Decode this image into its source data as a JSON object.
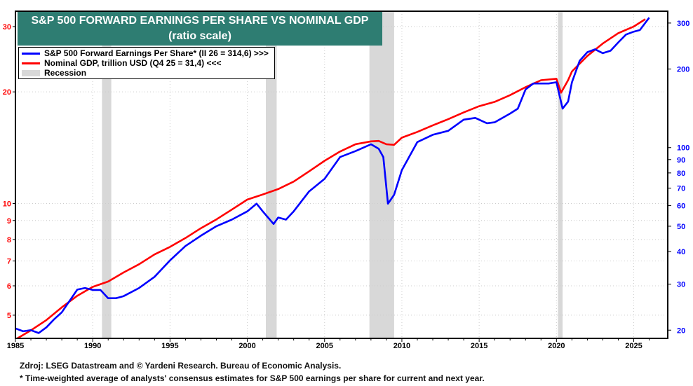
{
  "chart_data": {
    "type": "line",
    "title": "S&P 500 FORWARD EARNINGS PER SHARE VS NOMINAL GDP",
    "subtitle": "(ratio scale)",
    "x_ticks": [
      1985,
      1990,
      1995,
      2000,
      2005,
      2010,
      2015,
      2020,
      2025
    ],
    "xlim": [
      1985,
      2027.2
    ],
    "left_axis": {
      "scale": "log",
      "ticks": [
        5,
        6,
        7,
        8,
        9,
        10,
        20,
        30
      ],
      "ylim": [
        4.33,
        33
      ],
      "color": "#ff0000"
    },
    "right_axis": {
      "scale": "log",
      "ticks": [
        20,
        30,
        40,
        50,
        60,
        70,
        80,
        90,
        100,
        200,
        300
      ],
      "ylim": [
        18.6,
        333
      ],
      "color": "#0000ff"
    },
    "grid": true,
    "legend_position": "top-left",
    "series": [
      {
        "name": "S&P 500 Forward Earnings Per Share* (II 26 = 314,6) >>>",
        "axis": "right",
        "color": "#0000ff",
        "x": [
          1985,
          1985.5,
          1986,
          1986.5,
          1987,
          1987.5,
          1988,
          1989,
          1989.5,
          1990,
          1990.5,
          1991,
          1991.5,
          1992,
          1993,
          1994,
          1995,
          1996,
          1997,
          1998,
          1999,
          2000,
          2000.6,
          2001,
          2001.7,
          2002,
          2002.5,
          2003,
          2004,
          2005,
          2006,
          2007,
          2008,
          2008.5,
          2008.8,
          2009.1,
          2009.5,
          2010,
          2011,
          2012,
          2013,
          2014,
          2014.75,
          2015.5,
          2016,
          2017,
          2017.5,
          2018,
          2018.5,
          2019,
          2019.5,
          2020,
          2020.4,
          2020.75,
          2021,
          2021.5,
          2022,
          2022.5,
          2023,
          2023.5,
          2024,
          2024.5,
          2025,
          2025.4,
          2025.7,
          2026.0
        ],
        "y": [
          20.3,
          19.8,
          20,
          19.5,
          20.5,
          22,
          23.4,
          28.6,
          29,
          28.5,
          28.5,
          26.5,
          26.5,
          27,
          29,
          32,
          37,
          42,
          46,
          50,
          53,
          57,
          61,
          57,
          51,
          54,
          53,
          57,
          68,
          76,
          92,
          97,
          103,
          99,
          92,
          61,
          66,
          82,
          105,
          112,
          116,
          128,
          130,
          124,
          125,
          135,
          141,
          167,
          176,
          176,
          176,
          178,
          141,
          150,
          178,
          215,
          232,
          238,
          230,
          235,
          253,
          271,
          278,
          282,
          298,
          314.6
        ]
      },
      {
        "name": "Nominal GDP, trillion USD (Q4 25 = 31,4) <<<",
        "axis": "left",
        "color": "#ff0000",
        "x": [
          1985,
          1986,
          1987,
          1988,
          1989,
          1990,
          1991,
          1992,
          1993,
          1994,
          1995,
          1996,
          1997,
          1998,
          1999,
          2000,
          2001,
          2002,
          2003,
          2004,
          2005,
          2006,
          2007,
          2008,
          2008.5,
          2009,
          2009.5,
          2010,
          2011,
          2012,
          2013,
          2014,
          2015,
          2016,
          2017,
          2018,
          2019,
          2020,
          2020.3,
          2020.75,
          2021,
          2022,
          2023,
          2024,
          2025,
          2025.75
        ],
        "y": [
          4.3,
          4.55,
          4.85,
          5.25,
          5.64,
          5.96,
          6.16,
          6.52,
          6.86,
          7.29,
          7.64,
          8.07,
          8.58,
          9.06,
          9.63,
          10.25,
          10.58,
          10.94,
          11.46,
          12.21,
          13.04,
          13.81,
          14.45,
          14.71,
          14.75,
          14.45,
          14.4,
          15.05,
          15.6,
          16.25,
          16.88,
          17.61,
          18.3,
          18.8,
          19.6,
          20.6,
          21.5,
          21.7,
          19.9,
          21.5,
          22.7,
          25.0,
          27.0,
          28.8,
          30.0,
          31.4
        ]
      }
    ],
    "recession_label": "Recession",
    "recessions": [
      [
        1990.6,
        1991.2
      ],
      [
        2001.2,
        2001.9
      ],
      [
        2007.9,
        2009.5
      ],
      [
        2020.1,
        2020.4
      ]
    ]
  },
  "footer": {
    "source": "Zdroj: LSEG Datastream and © Yardeni Research.  Bureau of Economic Analysis.",
    "note": "* Time-weighted average of analysts' consensus estimates for S&P 500 earnings per share for current and next year."
  }
}
